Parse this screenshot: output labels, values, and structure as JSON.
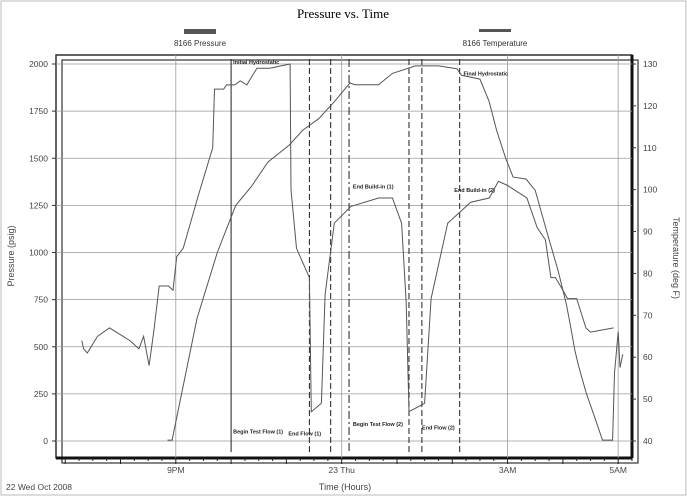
{
  "chart_data": {
    "type": "line",
    "title": "Pressure vs. Time",
    "xlabel": "Time (Hours)",
    "ylabel": "Pressure (psig)",
    "y2label": "Temperature (deg F)",
    "date_label": "22 Wed Oct 2008",
    "ylim": [
      0,
      2000
    ],
    "y2lim": [
      40,
      130
    ],
    "yticks": [
      0,
      250,
      500,
      750,
      1000,
      1250,
      1500,
      1750,
      2000
    ],
    "y2ticks": [
      40,
      50,
      60,
      70,
      80,
      90,
      100,
      110,
      120,
      130
    ],
    "xlim": [
      "2008-10-22 18:50",
      "2008-10-23 05:15"
    ],
    "xticks": [
      {
        "t": "2008-10-22 21:00",
        "label": "9PM"
      },
      {
        "t": "2008-10-23 00:00",
        "label": "23 Thu"
      },
      {
        "t": "2008-10-23 03:00",
        "label": "3AM"
      },
      {
        "t": "2008-10-23 05:00",
        "label": "5AM"
      }
    ],
    "grid": true,
    "legend": "top",
    "series": [
      {
        "name": "8166 Pressure",
        "axis": "left",
        "color": "#555555",
        "points": [
          [
            "2008-10-22 20:51",
            5
          ],
          [
            "2008-10-22 20:56",
            5
          ],
          [
            "2008-10-22 21:05",
            220
          ],
          [
            "2008-10-22 21:23",
            650
          ],
          [
            "2008-10-22 21:45",
            1000
          ],
          [
            "2008-10-22 22:05",
            1250
          ],
          [
            "2008-10-22 22:22",
            1350
          ],
          [
            "2008-10-22 22:40",
            1480
          ],
          [
            "2008-10-22 23:03",
            1570
          ],
          [
            "2008-10-22 23:18",
            1650
          ],
          [
            "2008-10-22 23:35",
            1710
          ],
          [
            "2008-10-22 23:52",
            1800
          ],
          [
            "2008-10-23 00:09",
            1900
          ],
          [
            "2008-10-23 00:14",
            1890
          ],
          [
            "2008-10-23 00:40",
            1890
          ],
          [
            "2008-10-23 00:55",
            1950
          ],
          [
            "2008-10-23 01:20",
            1990
          ],
          [
            "2008-10-23 01:45",
            1990
          ],
          [
            "2008-10-23 02:05",
            1975
          ],
          [
            "2008-10-23 02:10",
            1940
          ],
          [
            "2008-10-23 02:30",
            1920
          ],
          [
            "2008-10-23 02:40",
            1800
          ],
          [
            "2008-10-23 02:48",
            1650
          ],
          [
            "2008-10-23 02:58",
            1500
          ],
          [
            "2008-10-23 03:06",
            1400
          ],
          [
            "2008-10-23 03:20",
            1390
          ],
          [
            "2008-10-23 03:30",
            1330
          ],
          [
            "2008-10-23 03:42",
            1120
          ],
          [
            "2008-10-23 03:55",
            900
          ],
          [
            "2008-10-23 04:04",
            720
          ],
          [
            "2008-10-23 04:09",
            590
          ],
          [
            "2008-10-23 04:13",
            480
          ],
          [
            "2008-10-23 04:17",
            400
          ],
          [
            "2008-10-23 04:25",
            260
          ],
          [
            "2008-10-23 04:35",
            120
          ],
          [
            "2008-10-23 04:43",
            5
          ],
          [
            "2008-10-23 04:54",
            5
          ],
          [
            "2008-10-23 04:56",
            360
          ],
          [
            "2008-10-23 05:00",
            580
          ],
          [
            "2008-10-23 05:02",
            390
          ],
          [
            "2008-10-23 05:05",
            460
          ]
        ]
      },
      {
        "name": "8166 Temperature",
        "axis": "right",
        "color": "#555555",
        "points": [
          [
            "2008-10-22 19:18",
            64
          ],
          [
            "2008-10-22 19:20",
            62
          ],
          [
            "2008-10-22 19:24",
            61
          ],
          [
            "2008-10-22 19:35",
            65
          ],
          [
            "2008-10-22 19:48",
            67
          ],
          [
            "2008-10-22 20:10",
            64
          ],
          [
            "2008-10-22 20:20",
            62
          ],
          [
            "2008-10-22 20:25",
            65
          ],
          [
            "2008-10-22 20:31",
            58
          ],
          [
            "2008-10-22 20:36",
            66
          ],
          [
            "2008-10-22 20:42",
            77
          ],
          [
            "2008-10-22 20:52",
            77
          ],
          [
            "2008-10-22 20:57",
            76
          ],
          [
            "2008-10-22 21:01",
            84
          ],
          [
            "2008-10-22 21:08",
            86
          ],
          [
            "2008-10-22 21:25",
            99
          ],
          [
            "2008-10-22 21:40",
            110
          ],
          [
            "2008-10-22 21:42",
            124
          ],
          [
            "2008-10-22 21:52",
            124
          ],
          [
            "2008-10-22 21:55",
            125
          ],
          [
            "2008-10-22 22:04",
            125
          ],
          [
            "2008-10-22 22:10",
            126
          ],
          [
            "2008-10-22 22:17",
            125
          ],
          [
            "2008-10-22 22:28",
            129
          ],
          [
            "2008-10-22 22:42",
            129
          ],
          [
            "2008-10-22 23:04",
            130
          ],
          [
            "2008-10-22 23:05",
            100
          ],
          [
            "2008-10-22 23:11",
            86
          ],
          [
            "2008-10-22 23:25",
            79
          ],
          [
            "2008-10-22 23:27",
            47
          ],
          [
            "2008-10-22 23:38",
            49
          ],
          [
            "2008-10-22 23:42",
            75
          ],
          [
            "2008-10-22 23:52",
            92
          ],
          [
            "2008-10-23 00:10",
            96
          ],
          [
            "2008-10-23 00:40",
            98
          ],
          [
            "2008-10-23 00:55",
            98
          ],
          [
            "2008-10-23 01:05",
            92
          ],
          [
            "2008-10-23 01:10",
            73
          ],
          [
            "2008-10-23 01:13",
            47
          ],
          [
            "2008-10-23 01:30",
            49
          ],
          [
            "2008-10-23 01:37",
            74
          ],
          [
            "2008-10-23 01:55",
            92
          ],
          [
            "2008-10-23 02:20",
            97
          ],
          [
            "2008-10-23 02:40",
            98
          ],
          [
            "2008-10-23 02:50",
            102
          ],
          [
            "2008-10-23 03:00",
            101
          ],
          [
            "2008-10-23 03:07",
            100
          ],
          [
            "2008-10-23 03:21",
            98
          ],
          [
            "2008-10-23 03:32",
            91
          ],
          [
            "2008-10-23 03:41",
            88
          ],
          [
            "2008-10-23 03:47",
            79
          ],
          [
            "2008-10-23 03:52",
            79
          ],
          [
            "2008-10-23 04:00",
            76
          ],
          [
            "2008-10-23 04:05",
            74
          ],
          [
            "2008-10-23 04:15",
            74
          ],
          [
            "2008-10-23 04:25",
            67
          ],
          [
            "2008-10-23 04:30",
            66
          ],
          [
            "2008-10-23 04:55",
            67
          ]
        ]
      }
    ],
    "events": [
      {
        "t": "2008-10-22 22:00",
        "label": "Initial Hydrostatic",
        "label_value": 2000
      },
      {
        "t": "2008-10-23 00:10",
        "label": "End Build-in (1)",
        "label_value": 1340
      },
      {
        "t": "2008-10-23 02:10",
        "label": "Final Hydrostatic",
        "label_value": 1940
      },
      {
        "t": "2008-10-23 02:00",
        "label": "End Build-in (2)",
        "label_value": 1320
      },
      {
        "t": "2008-10-22 22:00",
        "label": "Begin Test Flow (1)",
        "label_value": 40
      },
      {
        "t": "2008-10-22 23:00",
        "label": "End Flow (1)",
        "label_value": 30
      },
      {
        "t": "2008-10-23 00:10",
        "label": "Begin Test Flow (2)",
        "label_value": 80
      },
      {
        "t": "2008-10-23 01:25",
        "label": "End Flow (2)",
        "label_value": 60
      }
    ],
    "event_lines": [
      {
        "t": "2008-10-22 22:00",
        "style": "solid"
      },
      {
        "t": "2008-10-22 23:25",
        "style": "dashed"
      },
      {
        "t": "2008-10-22 23:48",
        "style": "dashed"
      },
      {
        "t": "2008-10-23 00:08",
        "style": "dashdot"
      },
      {
        "t": "2008-10-23 01:13",
        "style": "dashed"
      },
      {
        "t": "2008-10-23 01:27",
        "style": "dashed"
      },
      {
        "t": "2008-10-23 02:08",
        "style": "dashed"
      }
    ]
  }
}
